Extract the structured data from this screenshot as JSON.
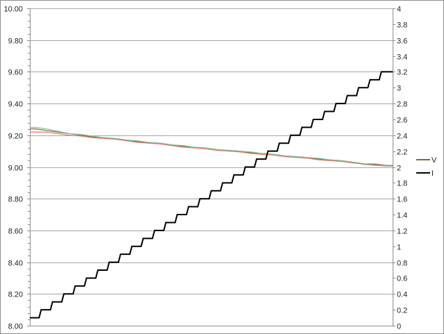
{
  "chart_data": {
    "type": "line",
    "title": "",
    "xlabel": "",
    "ylabel": "",
    "y_left": {
      "range": [
        8.0,
        10.0
      ],
      "step": 0.2,
      "tick_labels": [
        "8.00",
        "8.20",
        "8.40",
        "8.60",
        "8.80",
        "9.00",
        "9.20",
        "9.40",
        "9.60",
        "9.80",
        "10.00"
      ]
    },
    "y_right": {
      "range": [
        0,
        4
      ],
      "step": 0.2,
      "tick_labels": [
        "0",
        "0.2",
        "0.4",
        "0.6",
        "0.8",
        "1",
        "1.2",
        "1.4",
        "1.6",
        "1.8",
        "2",
        "2.2",
        "2.4",
        "2.6",
        "2.8",
        "3",
        "3.2",
        "3.4",
        "3.6",
        "3.8",
        "4"
      ]
    },
    "grid": "horizontal major lines (left axis)",
    "legend_position": "right",
    "x": [
      0,
      1,
      2,
      3,
      4,
      5,
      6,
      7,
      8,
      9,
      10,
      11,
      12,
      13,
      14,
      15,
      16,
      17,
      18,
      19,
      20,
      21,
      22,
      23,
      24,
      25,
      26,
      27,
      28,
      29,
      30,
      31
    ],
    "series": [
      {
        "name": "V",
        "axis": "left",
        "color": "#7a6a3c",
        "values": [
          9.24,
          9.23,
          9.22,
          9.21,
          9.2,
          9.19,
          9.185,
          9.18,
          9.17,
          9.16,
          9.155,
          9.15,
          9.14,
          9.13,
          9.125,
          9.12,
          9.11,
          9.105,
          9.1,
          9.09,
          9.085,
          9.08,
          9.07,
          9.065,
          9.06,
          9.05,
          9.045,
          9.04,
          9.03,
          9.02,
          9.015,
          9.01
        ]
      },
      {
        "axis": "left",
        "color": "#7fbf9a",
        "values": [
          9.25,
          9.24,
          9.225,
          9.21,
          9.205,
          9.195,
          9.185,
          9.18,
          9.17,
          9.165,
          9.155,
          9.15,
          9.14,
          9.135,
          9.125,
          9.12,
          9.11,
          9.105,
          9.1,
          9.095,
          9.085,
          9.08,
          9.07,
          9.065,
          9.06,
          9.055,
          9.045,
          9.04,
          9.03,
          9.015,
          9.01,
          9.005
        ]
      },
      {
        "axis": "left",
        "color": "#e07a6a",
        "values": [
          9.22,
          9.22,
          9.21,
          9.2,
          9.195,
          9.185,
          9.18,
          9.175,
          9.165,
          9.155,
          9.15,
          9.145,
          9.135,
          9.125,
          9.12,
          9.115,
          9.105,
          9.1,
          9.095,
          9.085,
          9.08,
          9.075,
          9.065,
          9.06,
          9.055,
          9.045,
          9.04,
          9.035,
          9.025,
          9.02,
          9.02,
          9.01
        ]
      },
      {
        "name": "I",
        "axis": "right",
        "color": "#000000",
        "step": true,
        "values": [
          0.1,
          0.2,
          0.3,
          0.4,
          0.5,
          0.6,
          0.7,
          0.8,
          0.9,
          1.0,
          1.1,
          1.2,
          1.3,
          1.4,
          1.5,
          1.6,
          1.7,
          1.8,
          1.9,
          2.0,
          2.1,
          2.2,
          2.3,
          2.4,
          2.5,
          2.6,
          2.7,
          2.8,
          2.9,
          3.0,
          3.1,
          3.2
        ]
      }
    ]
  }
}
